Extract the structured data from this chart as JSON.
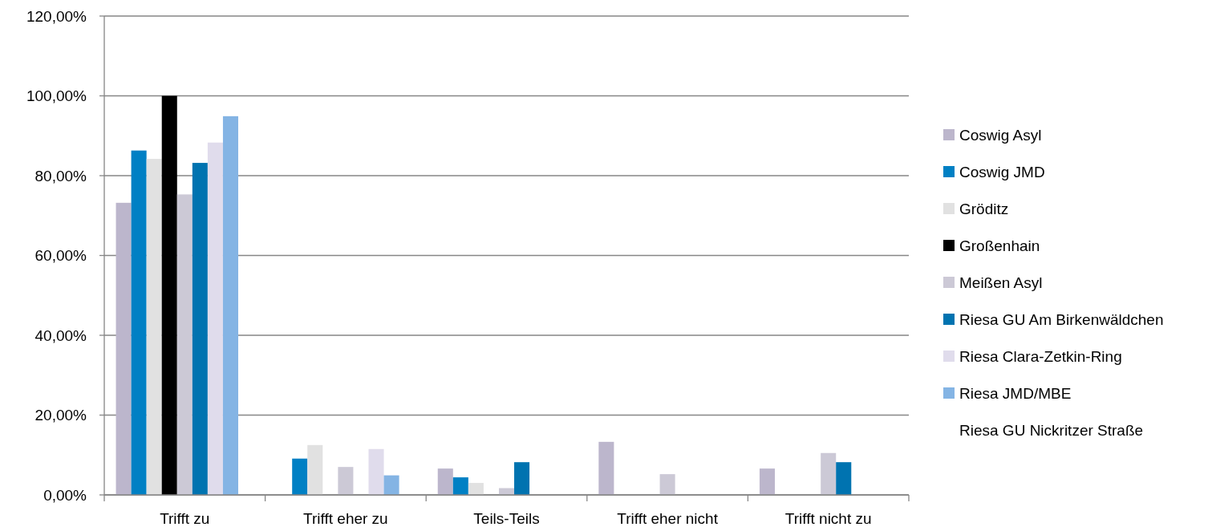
{
  "chart_data": {
    "type": "bar",
    "categories": [
      "Trifft zu",
      "Trifft eher zu",
      "Teils-Teils",
      "Trifft eher nicht",
      "Trifft nicht zu"
    ],
    "series": [
      {
        "name": "Coswig Asyl",
        "color": "#bcb6cc",
        "values": [
          73.2,
          0,
          6.6,
          13.3,
          6.6
        ]
      },
      {
        "name": "Coswig JMD",
        "color": "#0080c4",
        "values": [
          86.3,
          9.1,
          4.4,
          0,
          0
        ]
      },
      {
        "name": "Gröditz",
        "color": "#e1e1e1",
        "values": [
          84.2,
          12.5,
          3.0,
          0,
          0
        ]
      },
      {
        "name": "Großenhain",
        "color": "#000000",
        "values": [
          100,
          0,
          0,
          0,
          0
        ]
      },
      {
        "name": "Meißen Asyl",
        "color": "#ccc9d6",
        "values": [
          75.3,
          7.0,
          1.7,
          5.2,
          10.5
        ]
      },
      {
        "name": "Riesa GU Am Birkenwäldchen",
        "color": "#0073b0",
        "values": [
          83.2,
          0,
          8.2,
          0,
          8.2
        ]
      },
      {
        "name": "Riesa Clara-Zetkin-Ring",
        "color": "#e0dcec",
        "values": [
          88.3,
          11.5,
          0,
          0,
          0
        ]
      },
      {
        "name": "Riesa JMD/MBE",
        "color": "#84b4e4",
        "values": [
          94.9,
          4.9,
          0,
          0,
          0
        ]
      },
      {
        "name": "Riesa GU Nickritzer Straße",
        "values": [
          null,
          null,
          null,
          null,
          null
        ]
      }
    ],
    "ylim": [
      0,
      120
    ],
    "yticks": [
      {
        "value": 0,
        "label": "0,00%"
      },
      {
        "value": 20,
        "label": "20,00%"
      },
      {
        "value": 40,
        "label": "40,00%"
      },
      {
        "value": 60,
        "label": "60,00%"
      },
      {
        "value": 80,
        "label": "80,00%"
      },
      {
        "value": 100,
        "label": "100,00%"
      },
      {
        "value": 120,
        "label": "120,00%"
      }
    ],
    "grid": "y",
    "legend": "right"
  }
}
